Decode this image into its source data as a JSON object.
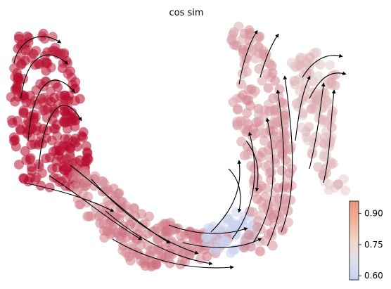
{
  "chart_data": {
    "type": "scatter",
    "title": "cos sim",
    "xlabel": "",
    "ylabel": "",
    "axes_visible": false,
    "overlay": "velocity streamlines with arrowheads",
    "color_scale": {
      "cmap": "coolwarm",
      "min": 0.58,
      "max": 0.96,
      "ticks": [
        0.6,
        0.75,
        0.9
      ],
      "tick_labels": [
        "0.60",
        "0.75",
        "0.90"
      ],
      "low_color": "#bfcdf2",
      "mid_color": "#e8dcd8",
      "high_color": "#b40426"
    },
    "series": [
      {
        "values_description": "cell cos-sim values",
        "clusters": [
          {
            "region": "left lobe",
            "value": 0.95
          },
          {
            "region": "lower arc",
            "value": 0.85
          },
          {
            "region": "bottom center",
            "value": 0.63
          },
          {
            "region": "right arm",
            "value": 0.83
          },
          {
            "region": "right branch",
            "value": 0.8
          }
        ]
      }
    ]
  }
}
